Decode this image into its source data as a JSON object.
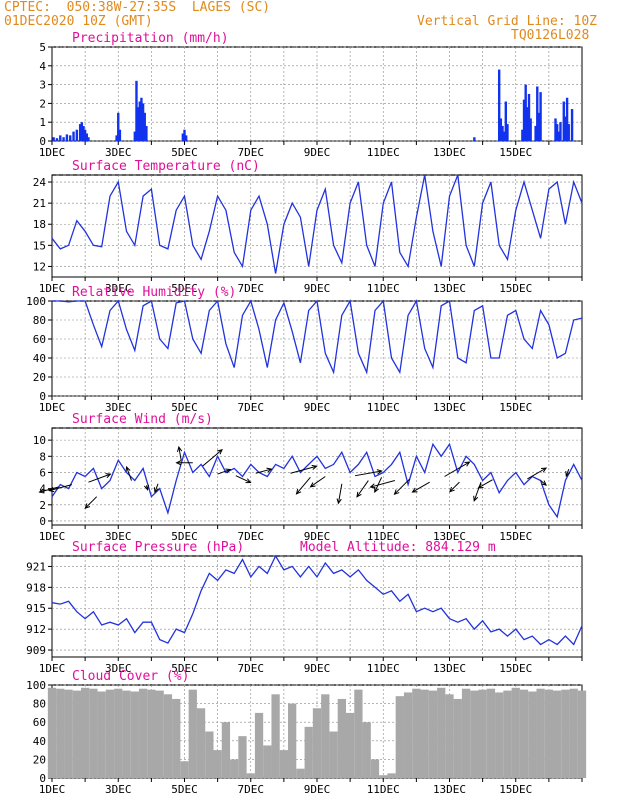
{
  "header": {
    "line1": "CPTEC:  050:38W-27:35S  LAGES (SC)",
    "line2": "01DEC2020 10Z (GMT)",
    "grid_note": "Vertical Grid Line: 10Z",
    "model_id": "TQ0126L028"
  },
  "colors": {
    "header": "#e08a1e",
    "title": "#e0109a",
    "line": "#2233dd",
    "bar": "#1133ee",
    "cloud": "#a8a8a8",
    "arrow": "#000000"
  },
  "x_ticks": [
    "1DEC",
    "3DEC",
    "5DEC",
    "7DEC",
    "9DEC",
    "11DEC",
    "13DEC",
    "15DEC"
  ],
  "chart_data": [
    {
      "id": "precip",
      "type": "bar",
      "title": "Precipitation (mm/h)",
      "ylim": [
        0,
        5
      ],
      "yticks": [
        0,
        1,
        2,
        3,
        4,
        5
      ],
      "x_days": [
        0.05,
        0.15,
        0.25,
        0.35,
        0.45,
        0.55,
        0.65,
        0.75,
        0.85,
        0.9,
        0.95,
        1.0,
        1.05,
        1.1,
        1.95,
        2.0,
        2.05,
        2.5,
        2.55,
        2.6,
        2.65,
        2.7,
        2.75,
        2.8,
        2.85,
        3.95,
        4.0,
        4.05,
        12.75,
        13.5,
        13.55,
        13.6,
        13.65,
        13.7,
        13.75,
        14.2,
        14.25,
        14.3,
        14.35,
        14.4,
        14.45,
        14.6,
        14.65,
        14.7,
        14.75,
        15.2,
        15.25,
        15.3,
        15.35,
        15.45,
        15.5,
        15.55,
        15.6,
        15.7
      ],
      "values": [
        0.2,
        0.15,
        0.3,
        0.2,
        0.35,
        0.3,
        0.5,
        0.6,
        0.9,
        1.0,
        0.8,
        0.6,
        0.4,
        0.2,
        0.3,
        1.5,
        0.6,
        0.5,
        3.2,
        1.8,
        2.1,
        2.3,
        2.0,
        1.5,
        0.8,
        0.4,
        0.6,
        0.3,
        0.2,
        3.8,
        1.2,
        0.8,
        0.5,
        2.1,
        0.9,
        0.6,
        2.2,
        3.0,
        1.8,
        2.5,
        1.2,
        0.8,
        2.9,
        1.5,
        2.6,
        1.2,
        0.9,
        0.5,
        1.0,
        2.1,
        1.3,
        2.3,
        0.9,
        1.7
      ]
    },
    {
      "id": "temp",
      "type": "line",
      "title": "Surface Temperature (nC)",
      "ylim": [
        10.5,
        25
      ],
      "yticks": [
        12,
        15,
        18,
        21,
        24
      ],
      "x_days": [
        0,
        0.25,
        0.5,
        0.75,
        1.0,
        1.25,
        1.5,
        1.75,
        2.0,
        2.25,
        2.5,
        2.75,
        3.0,
        3.25,
        3.5,
        3.75,
        4.0,
        4.25,
        4.5,
        4.75,
        5.0,
        5.25,
        5.5,
        5.75,
        6.0,
        6.25,
        6.5,
        6.75,
        7.0,
        7.25,
        7.5,
        7.75,
        8.0,
        8.25,
        8.5,
        8.75,
        9.0,
        9.25,
        9.5,
        9.75,
        10.0,
        10.25,
        10.5,
        10.75,
        11.0,
        11.25,
        11.5,
        11.75,
        12.0,
        12.25,
        12.5,
        12.75,
        13.0,
        13.25,
        13.5,
        13.75,
        14.0,
        14.25,
        14.5,
        14.75,
        15.0,
        15.25,
        15.5,
        15.75,
        16.0
      ],
      "values": [
        16,
        14.5,
        15,
        18.5,
        17,
        15,
        14.8,
        22,
        24,
        17,
        15,
        22,
        23,
        15,
        14.5,
        20,
        22,
        15,
        13,
        17,
        22,
        20,
        14,
        12,
        20,
        22,
        18,
        11,
        18,
        21,
        19,
        12,
        20,
        23,
        15,
        12.5,
        21,
        24,
        15,
        12,
        21,
        24,
        14,
        12,
        19,
        25,
        17,
        12,
        22,
        25,
        15,
        12,
        21,
        24,
        15,
        13,
        20,
        24,
        20,
        16,
        23,
        24,
        18,
        24,
        21
      ]
    },
    {
      "id": "rh",
      "type": "line",
      "title": "Relative Humidity (%)",
      "ylim": [
        0,
        100
      ],
      "yticks": [
        0,
        20,
        40,
        60,
        80,
        100
      ],
      "x_days": [
        0,
        0.25,
        0.5,
        0.75,
        1.0,
        1.25,
        1.5,
        1.75,
        2.0,
        2.25,
        2.5,
        2.75,
        3.0,
        3.25,
        3.5,
        3.75,
        4.0,
        4.25,
        4.5,
        4.75,
        5.0,
        5.25,
        5.5,
        5.75,
        6.0,
        6.25,
        6.5,
        6.75,
        7.0,
        7.25,
        7.5,
        7.75,
        8.0,
        8.25,
        8.5,
        8.75,
        9.0,
        9.25,
        9.5,
        9.75,
        10.0,
        10.25,
        10.5,
        10.75,
        11.0,
        11.25,
        11.5,
        11.75,
        12.0,
        12.25,
        12.5,
        12.75,
        13.0,
        13.25,
        13.5,
        13.75,
        14.0,
        14.25,
        14.5,
        14.75,
        15.0,
        15.25,
        15.5,
        15.75,
        16.0
      ],
      "values": [
        100,
        100,
        99,
        100,
        100,
        75,
        52,
        90,
        100,
        70,
        48,
        95,
        100,
        60,
        50,
        98,
        100,
        60,
        45,
        90,
        100,
        55,
        30,
        85,
        100,
        70,
        30,
        80,
        98,
        68,
        35,
        90,
        100,
        45,
        25,
        85,
        100,
        45,
        25,
        90,
        100,
        40,
        25,
        85,
        100,
        50,
        30,
        95,
        100,
        40,
        35,
        90,
        95,
        40,
        40,
        85,
        90,
        60,
        50,
        90,
        75,
        40,
        45,
        80,
        82
      ]
    },
    {
      "id": "wind",
      "type": "line",
      "title": "Surface Wind (m/s)",
      "ylim": [
        -0.5,
        11.5
      ],
      "yticks": [
        0,
        2,
        4,
        6,
        8,
        10
      ],
      "x_days": [
        0,
        0.25,
        0.5,
        0.75,
        1.0,
        1.25,
        1.5,
        1.75,
        2.0,
        2.25,
        2.5,
        2.75,
        3.0,
        3.25,
        3.5,
        3.75,
        4.0,
        4.25,
        4.5,
        4.75,
        5.0,
        5.25,
        5.5,
        5.75,
        6.0,
        6.25,
        6.5,
        6.75,
        7.0,
        7.25,
        7.5,
        7.75,
        8.0,
        8.25,
        8.5,
        8.75,
        9.0,
        9.25,
        9.5,
        9.75,
        10.0,
        10.25,
        10.5,
        10.75,
        11.0,
        11.25,
        11.5,
        11.75,
        12.0,
        12.25,
        12.5,
        12.75,
        13.0,
        13.25,
        13.5,
        13.75,
        14.0,
        14.25,
        14.5,
        14.75,
        15.0,
        15.25,
        15.5,
        15.75,
        16.0
      ],
      "values": [
        3,
        4.5,
        4,
        6,
        5.5,
        6.5,
        4,
        5,
        7.5,
        6,
        5,
        6.5,
        3,
        4,
        1,
        5,
        8.5,
        6,
        7,
        5.5,
        8,
        6,
        6.5,
        5.5,
        7,
        6,
        5.5,
        7,
        6.5,
        8,
        6,
        7,
        8,
        6.5,
        7,
        8.5,
        6,
        7,
        8.5,
        5.5,
        6,
        7,
        8.5,
        4.5,
        8,
        6,
        9.5,
        8,
        9.5,
        6,
        8,
        7,
        5,
        6,
        3.5,
        5,
        6,
        4.5,
        5.5,
        5,
        2,
        0.5,
        5,
        7,
        5
      ],
      "arrows": [
        [
          0.2,
          4.2,
          195,
          2.2
        ],
        [
          0.6,
          4.5,
          195,
          2.6
        ],
        [
          1.1,
          4.8,
          20,
          2.6
        ],
        [
          1.35,
          3.0,
          225,
          1.8
        ],
        [
          2.4,
          5.0,
          110,
          1.6
        ],
        [
          2.85,
          4.4,
          285,
          0.5
        ],
        [
          3.2,
          4.6,
          250,
          1.0
        ],
        [
          3.9,
          7.5,
          100,
          1.5
        ],
        [
          4.25,
          7.2,
          180,
          1.8
        ],
        [
          4.55,
          6.8,
          40,
          2.8
        ],
        [
          5.0,
          5.8,
          20,
          1.5
        ],
        [
          5.55,
          5.6,
          335,
          1.8
        ],
        [
          6.15,
          5.9,
          15,
          1.8
        ],
        [
          7.2,
          5.9,
          15,
          3.0
        ],
        [
          7.8,
          5.4,
          230,
          2.4
        ],
        [
          8.25,
          5.5,
          215,
          2.0
        ],
        [
          8.75,
          4.6,
          260,
          2.2
        ],
        [
          9.15,
          5.6,
          10,
          3.0
        ],
        [
          9.55,
          5.0,
          235,
          2.2
        ],
        [
          9.95,
          5.4,
          245,
          1.8
        ],
        [
          10.35,
          5.0,
          195,
          2.8
        ],
        [
          10.8,
          5.2,
          225,
          2.4
        ],
        [
          11.4,
          4.8,
          210,
          2.2
        ],
        [
          11.85,
          5.5,
          30,
          3.2
        ],
        [
          12.3,
          4.8,
          225,
          1.5
        ],
        [
          12.95,
          4.8,
          250,
          2.2
        ],
        [
          13.3,
          5.1,
          210,
          1.8
        ],
        [
          14.35,
          5.2,
          30,
          2.4
        ],
        [
          14.75,
          5.0,
          320,
          0.8
        ],
        [
          15.6,
          6.4,
          250,
          0.8
        ]
      ]
    },
    {
      "id": "pres",
      "type": "line",
      "title": "Surface Pressure (hPa)",
      "note": "Model Altitude: 884.129 m",
      "ylim": [
        908,
        922.5
      ],
      "yticks": [
        909,
        912,
        915,
        918,
        921
      ],
      "x_days": [
        0,
        0.25,
        0.5,
        0.75,
        1.0,
        1.25,
        1.5,
        1.75,
        2.0,
        2.25,
        2.5,
        2.75,
        3.0,
        3.25,
        3.5,
        3.75,
        4.0,
        4.25,
        4.5,
        4.75,
        5.0,
        5.25,
        5.5,
        5.75,
        6.0,
        6.25,
        6.5,
        6.75,
        7.0,
        7.25,
        7.5,
        7.75,
        8.0,
        8.25,
        8.5,
        8.75,
        9.0,
        9.25,
        9.5,
        9.75,
        10.0,
        10.25,
        10.5,
        10.75,
        11.0,
        11.25,
        11.5,
        11.75,
        12.0,
        12.25,
        12.5,
        12.75,
        13.0,
        13.25,
        13.5,
        13.75,
        14.0,
        14.25,
        14.5,
        14.75,
        15.0,
        15.25,
        15.5,
        15.75,
        16.0
      ],
      "values": [
        915.8,
        915.6,
        916,
        914.5,
        913.5,
        914.5,
        912.6,
        913,
        912.6,
        913.5,
        911.5,
        913,
        913,
        910.5,
        910,
        912,
        911.5,
        914.2,
        917.5,
        920,
        919,
        920.5,
        920,
        922,
        919.5,
        921,
        920,
        922.5,
        920.5,
        921,
        919.5,
        921,
        919.5,
        921.5,
        920,
        920.5,
        919.5,
        920.5,
        919,
        918,
        917,
        917.5,
        916,
        917,
        914.5,
        915,
        914.5,
        915,
        913.5,
        913,
        913.5,
        912,
        913.2,
        911.6,
        912,
        911,
        912,
        910.5,
        911,
        909.8,
        910.5,
        909.8,
        911,
        909.8,
        912.5
      ]
    },
    {
      "id": "cloud",
      "type": "area",
      "title": "Cloud Cover (%)",
      "ylim": [
        0,
        100
      ],
      "yticks": [
        0,
        20,
        40,
        60,
        80,
        100
      ],
      "x_days": [
        0,
        0.25,
        0.5,
        0.75,
        1.0,
        1.25,
        1.5,
        1.75,
        2.0,
        2.25,
        2.5,
        2.75,
        3.0,
        3.25,
        3.5,
        3.75,
        4.0,
        4.25,
        4.5,
        4.75,
        5.0,
        5.25,
        5.5,
        5.75,
        6.0,
        6.25,
        6.5,
        6.75,
        7.0,
        7.25,
        7.5,
        7.75,
        8.0,
        8.25,
        8.5,
        8.75,
        9.0,
        9.25,
        9.5,
        9.75,
        10.0,
        10.25,
        10.5,
        10.75,
        11.0,
        11.25,
        11.5,
        11.75,
        12.0,
        12.25,
        12.5,
        12.75,
        13.0,
        13.25,
        13.5,
        13.75,
        14.0,
        14.25,
        14.5,
        14.75,
        15.0,
        15.25,
        15.5,
        15.75,
        16.0
      ],
      "values": [
        97,
        96,
        95,
        94,
        97,
        96,
        93,
        95,
        96,
        94,
        93,
        96,
        95,
        94,
        90,
        85,
        18,
        95,
        75,
        50,
        30,
        60,
        20,
        45,
        5,
        70,
        35,
        90,
        30,
        80,
        10,
        55,
        75,
        90,
        50,
        85,
        70,
        95,
        60,
        20,
        3,
        5,
        88,
        92,
        96,
        95,
        94,
        97,
        90,
        85,
        96,
        94,
        95,
        96,
        92,
        94,
        97,
        95,
        93,
        96,
        95,
        94,
        95,
        96,
        94
      ]
    }
  ]
}
